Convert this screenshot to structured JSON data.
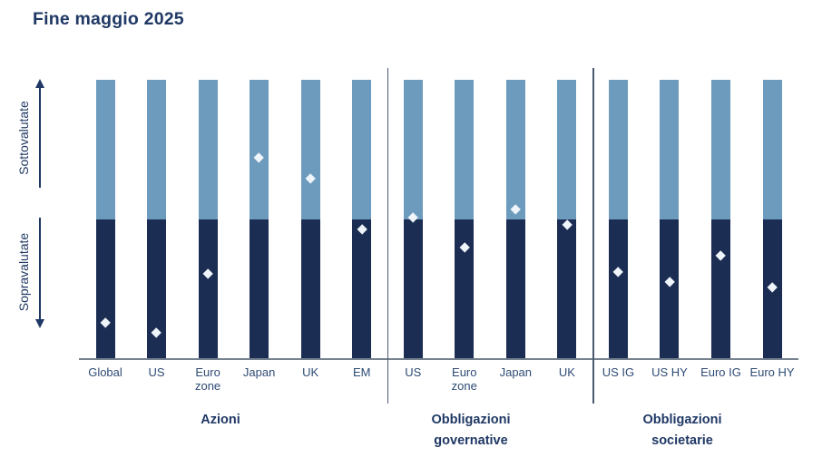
{
  "title": "Fine maggio 2025",
  "y_axis": {
    "top_label": "Sottovalutate",
    "bottom_label": "Sopravalutate"
  },
  "colors": {
    "undervalued_segment": "#6D9BBD",
    "overvalued_segment": "#1B2D52",
    "marker": "#EFF5FB",
    "heading_text": "#1F3864",
    "tick_text": "#2E4B74",
    "divider_line": "#4A5A6E",
    "axis_line": "#75818E"
  },
  "chart_data": {
    "type": "diverging-dot-column",
    "title": "Fine maggio 2025",
    "value_scale": {
      "top": "Sottovalutate",
      "bottom": "Sopravalutate",
      "ylim": [
        -1,
        1
      ],
      "midline": 0,
      "note": "score > 0 = marker in upper (sottovalutate) zone, score < 0 = lower (sopravalutate) zone"
    },
    "legend": "none",
    "groups": [
      {
        "label": "Azioni",
        "items": [
          {
            "label": "Global",
            "score": -0.74
          },
          {
            "label": "US",
            "score": -0.81
          },
          {
            "label": "Euro\nzone",
            "score": -0.39
          },
          {
            "label": "Japan",
            "score": 0.44
          },
          {
            "label": "UK",
            "score": 0.29
          },
          {
            "label": "EM",
            "score": -0.07
          }
        ]
      },
      {
        "label": "Obbligazioni\ngovernative",
        "items": [
          {
            "label": "US",
            "score": 0.01
          },
          {
            "label": "Euro\nzone",
            "score": -0.2
          },
          {
            "label": "Japan",
            "score": 0.07
          },
          {
            "label": "UK",
            "score": -0.04
          }
        ]
      },
      {
        "label": "Obbligazioni\nsocietarie",
        "items": [
          {
            "label": "US IG",
            "score": -0.38
          },
          {
            "label": "US HY",
            "score": -0.45
          },
          {
            "label": "Euro IG",
            "score": -0.26
          },
          {
            "label": "Euro HY",
            "score": -0.49
          }
        ]
      }
    ]
  }
}
